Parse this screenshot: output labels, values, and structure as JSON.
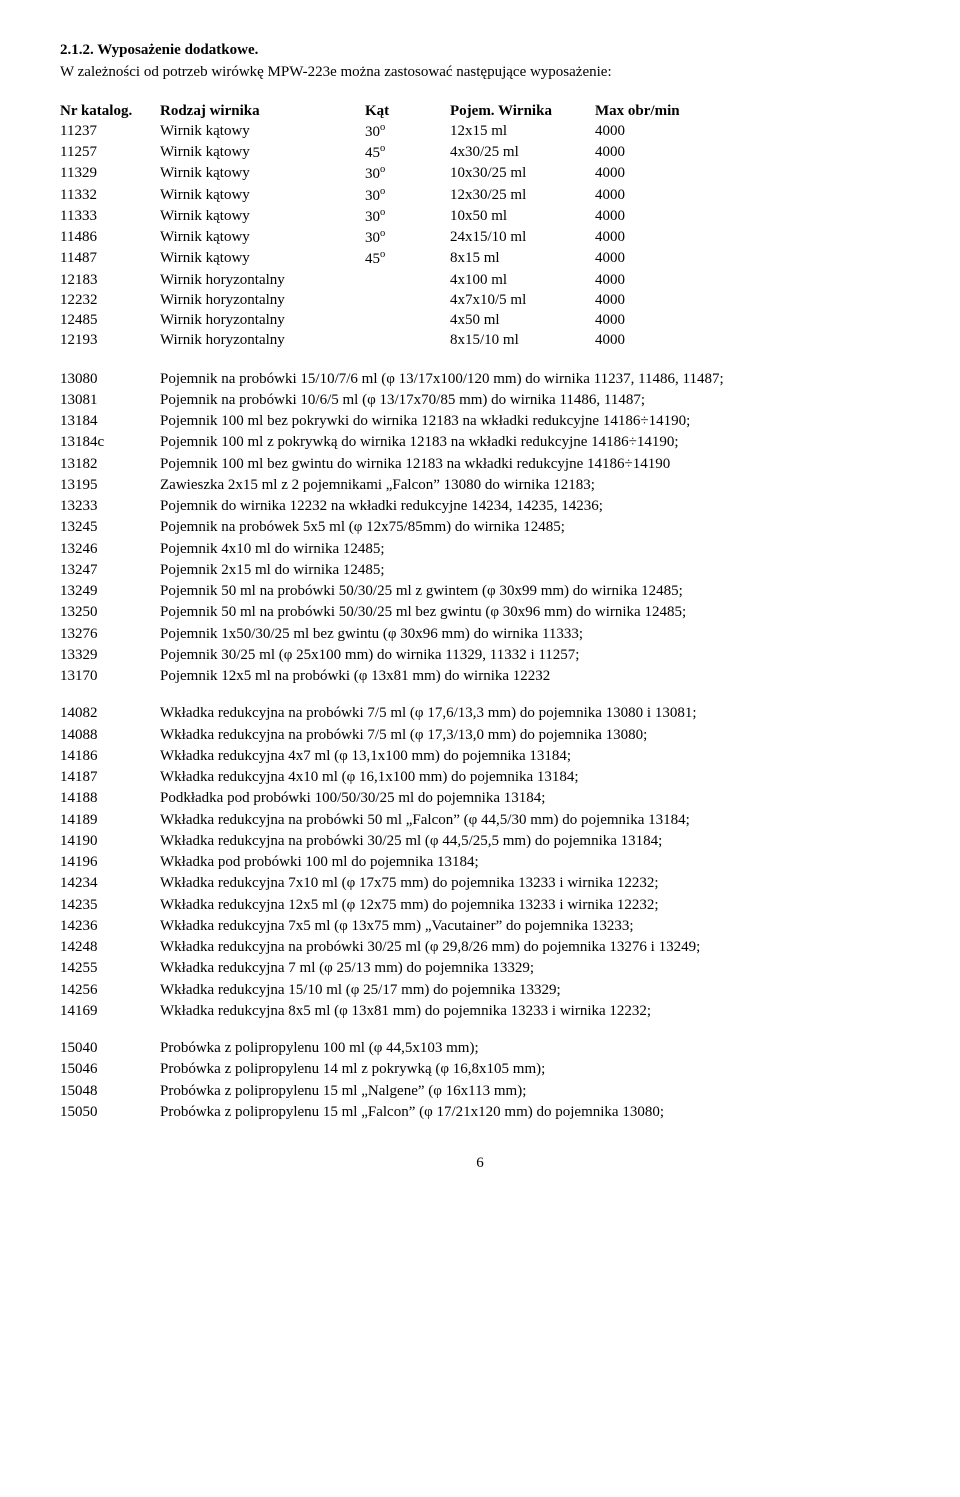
{
  "section_number": "2.1.2. Wyposażenie dodatkowe.",
  "intro": "W zależności od potrzeb wirówkę MPW-223e można zastosować następujące wyposażenie:",
  "rotor_table": {
    "headers": {
      "nr": "Nr katalog.",
      "rodzaj": "Rodzaj wirnika",
      "kat": "Kąt",
      "pojem": "Pojem. Wirnika",
      "max": "Max obr/min"
    },
    "rows": [
      {
        "nr": "11237",
        "rodzaj": "Wirnik kątowy",
        "kat": "30",
        "pojem": "12x15 ml",
        "max": "4000"
      },
      {
        "nr": "11257",
        "rodzaj": "Wirnik kątowy",
        "kat": "45",
        "pojem": "4x30/25 ml",
        "max": "4000"
      },
      {
        "nr": "11329",
        "rodzaj": "Wirnik kątowy",
        "kat": "30",
        "pojem": "10x30/25 ml",
        "max": "4000"
      },
      {
        "nr": "11332",
        "rodzaj": "Wirnik kątowy",
        "kat": "30",
        "pojem": "12x30/25 ml",
        "max": "4000"
      },
      {
        "nr": "11333",
        "rodzaj": "Wirnik kątowy",
        "kat": "30",
        "pojem": "10x50 ml",
        "max": "4000"
      },
      {
        "nr": "11486",
        "rodzaj": "Wirnik kątowy",
        "kat": "30",
        "pojem": "24x15/10 ml",
        "max": "4000"
      },
      {
        "nr": "11487",
        "rodzaj": "Wirnik kątowy",
        "kat": "45",
        "pojem": "8x15 ml",
        "max": "4000"
      },
      {
        "nr": "12183",
        "rodzaj": "Wirnik horyzontalny",
        "kat": "",
        "pojem": "4x100 ml",
        "max": "4000"
      },
      {
        "nr": "12232",
        "rodzaj": "Wirnik horyzontalny",
        "kat": "",
        "pojem": "4x7x10/5 ml",
        "max": "4000"
      },
      {
        "nr": "12485",
        "rodzaj": "Wirnik horyzontalny",
        "kat": "",
        "pojem": "4x50 ml",
        "max": "4000"
      },
      {
        "nr": "12193",
        "rodzaj": "Wirnik horyzontalny",
        "kat": "",
        "pojem": "8x15/10 ml",
        "max": "4000"
      }
    ]
  },
  "accessories_group1": [
    {
      "nr": "13080",
      "desc": "Pojemnik na probówki 15/10/7/6 ml (φ 13/17x100/120 mm) do wirnika 11237, 11486, 11487;"
    },
    {
      "nr": "13081",
      "desc": "Pojemnik na probówki 10/6/5 ml (φ 13/17x70/85 mm) do wirnika 11486, 11487;"
    },
    {
      "nr": "13184",
      "desc": "Pojemnik 100 ml bez pokrywki do wirnika 12183 na wkładki redukcyjne 14186÷14190;"
    },
    {
      "nr": "13184c",
      "desc": "Pojemnik 100 ml z pokrywką do wirnika 12183 na wkładki redukcyjne 14186÷14190;"
    },
    {
      "nr": "13182",
      "desc": "Pojemnik 100 ml bez gwintu do wirnika 12183 na wkładki redukcyjne 14186÷14190"
    },
    {
      "nr": "13195",
      "desc": "Zawieszka 2x15 ml z 2 pojemnikami „Falcon” 13080 do wirnika 12183;"
    },
    {
      "nr": "13233",
      "desc": "Pojemnik do wirnika 12232 na wkładki redukcyjne 14234, 14235, 14236;"
    },
    {
      "nr": "13245",
      "desc": "Pojemnik na probówek 5x5 ml (φ 12x75/85mm) do wirnika 12485;"
    },
    {
      "nr": "13246",
      "desc": "Pojemnik 4x10 ml do wirnika 12485;"
    },
    {
      "nr": "13247",
      "desc": "Pojemnik 2x15 ml do wirnika 12485;"
    },
    {
      "nr": "13249",
      "desc": "Pojemnik 50 ml na probówki 50/30/25 ml  z gwintem (φ 30x99 mm) do wirnika 12485;"
    },
    {
      "nr": "13250",
      "desc": "Pojemnik 50 ml na probówki 50/30/25 ml bez gwintu (φ 30x96 mm) do wirnika 12485;"
    },
    {
      "nr": "13276",
      "desc": "Pojemnik 1x50/30/25 ml bez gwintu (φ 30x96 mm) do wirnika 11333;"
    },
    {
      "nr": "13329",
      "desc": "Pojemnik 30/25 ml (φ 25x100 mm) do wirnika 11329, 11332 i 11257;"
    },
    {
      "nr": "13170",
      "desc": "Pojemnik 12x5 ml  na probówki (φ 13x81 mm)  do wirnika 12232"
    }
  ],
  "accessories_group2": [
    {
      "nr": "14082",
      "desc": "Wkładka redukcyjna na probówki 7/5 ml (φ 17,6/13,3 mm) do pojemnika 13080 i 13081;"
    },
    {
      "nr": "14088",
      "desc": "Wkładka redukcyjna na probówki 7/5 ml (φ 17,3/13,0 mm) do pojemnika 13080;"
    },
    {
      "nr": "14186",
      "desc": "Wkładka redukcyjna 4x7 ml (φ 13,1x100 mm) do pojemnika 13184;"
    },
    {
      "nr": "14187",
      "desc": "Wkładka redukcyjna 4x10 ml (φ 16,1x100 mm) do pojemnika 13184;"
    },
    {
      "nr": "14188",
      "desc": "Podkładka pod probówki 100/50/30/25 ml do pojemnika 13184;"
    },
    {
      "nr": "14189",
      "desc": "Wkładka redukcyjna na probówki 50 ml „Falcon” (φ 44,5/30 mm) do pojemnika 13184;"
    },
    {
      "nr": "14190",
      "desc": "Wkładka redukcyjna na probówki 30/25 ml (φ 44,5/25,5 mm) do pojemnika 13184;"
    },
    {
      "nr": "14196",
      "desc": "Wkładka pod  probówki 100 ml do pojemnika 13184;"
    },
    {
      "nr": "14234",
      "desc": "Wkładka redukcyjna 7x10 ml (φ 17x75 mm) do pojemnika 13233 i wirnika 12232;"
    },
    {
      "nr": "14235",
      "desc": "Wkładka redukcyjna 12x5 ml (φ 12x75 mm) do pojemnika 13233 i wirnika 12232;"
    },
    {
      "nr": "14236",
      "desc": "Wkładka redukcyjna 7x5 ml (φ 13x75 mm) „Vacutainer” do pojemnika 13233;"
    },
    {
      "nr": "14248",
      "desc": "Wkładka redukcyjna na probówki 30/25 ml (φ 29,8/26 mm) do pojemnika 13276 i 13249;"
    },
    {
      "nr": "14255",
      "desc": "Wkładka redukcyjna 7 ml (φ 25/13 mm) do pojemnika 13329;"
    },
    {
      "nr": "14256",
      "desc": "Wkładka redukcyjna 15/10 ml (φ 25/17 mm) do pojemnika 13329;"
    },
    {
      "nr": "14169",
      "desc": "Wkładka redukcyjna 8x5 ml (φ 13x81 mm) do pojemnika 13233 i wirnika 12232;"
    }
  ],
  "accessories_group3": [
    {
      "nr": "15040",
      "desc": "Probówka z polipropylenu 100 ml (φ 44,5x103 mm);"
    },
    {
      "nr": "15046",
      "desc": "Probówka z polipropylenu 14 ml z pokrywką (φ 16,8x105 mm);"
    },
    {
      "nr": "15048",
      "desc": "Probówka z polipropylenu 15 ml „Nalgene” (φ 16x113 mm);"
    },
    {
      "nr": "15050",
      "desc": "Probówka z polipropylenu 15 ml „Falcon” (φ 17/21x120 mm) do pojemnika 13080;"
    }
  ],
  "page_number": "6"
}
